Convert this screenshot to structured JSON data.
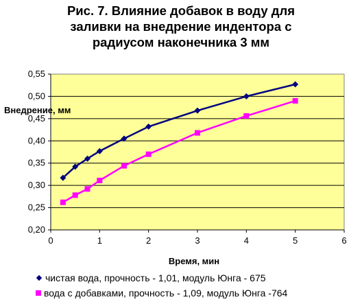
{
  "chart_data": {
    "type": "line",
    "title_lines": [
      "Рис. 7. Влияние добавок в воду для",
      "заливки на внедрение индентора с",
      "радиусом наконечника 3 мм"
    ],
    "xlabel": "Время, мин",
    "ylabel": "Внедрение, мм",
    "xlim": [
      0,
      6
    ],
    "ylim": [
      0.2,
      0.55
    ],
    "x_ticks": [
      "0",
      "1",
      "2",
      "3",
      "4",
      "5",
      "6"
    ],
    "y_ticks": [
      "0,20",
      "0,25",
      "0,30",
      "0,35",
      "0,40",
      "0,45",
      "0,50",
      "0,55"
    ],
    "grid": "horizontal",
    "legend_position": "bottom",
    "plot_background": "#ffff99",
    "series": [
      {
        "name": "чистая вода, прочность - 1,01, модуль Юнга - 675",
        "color": "#000080",
        "marker": "diamond",
        "x": [
          0.25,
          0.5,
          0.75,
          1,
          1.5,
          2,
          3,
          4,
          5
        ],
        "y": [
          0.317,
          0.342,
          0.36,
          0.377,
          0.405,
          0.432,
          0.468,
          0.5,
          0.527
        ]
      },
      {
        "name": "вода с добавками, прочность - 1,09, модуль Юнга -764",
        "color": "#ff00ff",
        "marker": "square",
        "x": [
          0.25,
          0.5,
          0.75,
          1,
          1.5,
          2,
          3,
          4,
          5
        ],
        "y": [
          0.262,
          0.278,
          0.292,
          0.311,
          0.344,
          0.37,
          0.418,
          0.456,
          0.49
        ]
      }
    ]
  }
}
